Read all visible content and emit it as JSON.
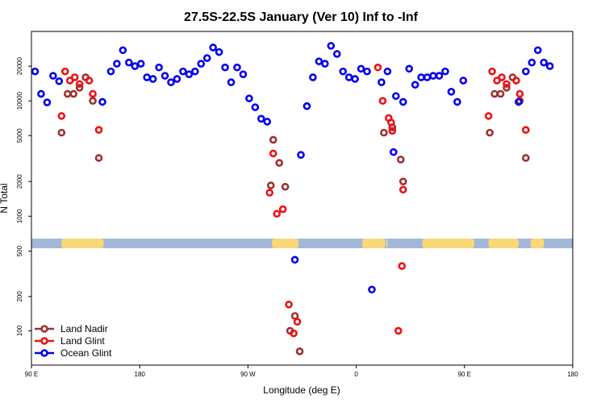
{
  "chart_data": {
    "type": "scatter",
    "title": "27.5S-22.5S January (Ver 10)   Inf to -Inf",
    "xlabel": "Longitude (deg E)",
    "ylabel": "N Total",
    "y_scale": "log",
    "xlim": [
      90,
      540
    ],
    "ylim": [
      50,
      40000
    ],
    "x_ticks": [
      {
        "value": 90,
        "label": "90 E"
      },
      {
        "value": 180,
        "label": "180"
      },
      {
        "value": 270,
        "label": "90 W"
      },
      {
        "value": 360,
        "label": "0"
      },
      {
        "value": 450,
        "label": "90 E"
      },
      {
        "value": 540,
        "label": "180"
      }
    ],
    "y_ticks": [
      {
        "value": 100,
        "label": "100"
      },
      {
        "value": 200,
        "label": "200"
      },
      {
        "value": 500,
        "label": "500"
      },
      {
        "value": 1000,
        "label": "1000"
      },
      {
        "value": 2000,
        "label": "2000"
      },
      {
        "value": 5000,
        "label": "5000"
      },
      {
        "value": 10000,
        "label": "10000"
      },
      {
        "value": 20000,
        "label": "20000"
      }
    ],
    "land_ocean_strip": {
      "y_range": [
        530,
        640
      ],
      "ocean_color": "#a3b8d8",
      "land_color": "#fad877",
      "land_segments": [
        [
          115,
          150
        ],
        [
          290,
          312
        ],
        [
          365,
          384
        ],
        [
          385,
          386
        ],
        [
          415,
          458
        ],
        [
          470,
          495
        ],
        [
          505,
          516
        ]
      ]
    },
    "legend": {
      "placement": "bottom-left"
    },
    "series": [
      {
        "name": "Land Nadir",
        "color": "#a03030",
        "points": [
          [
            115,
            5300
          ],
          [
            120,
            11500
          ],
          [
            125,
            11500
          ],
          [
            130,
            13000
          ],
          [
            135,
            16000
          ],
          [
            141,
            10000
          ],
          [
            146,
            3200
          ],
          [
            289,
            1850
          ],
          [
            291,
            4600
          ],
          [
            296,
            2900
          ],
          [
            301,
            1800
          ],
          [
            305,
            100
          ],
          [
            309,
            135
          ],
          [
            313,
            66
          ],
          [
            383,
            5300
          ],
          [
            390,
            5900
          ],
          [
            397,
            3100
          ],
          [
            399,
            2000
          ],
          [
            471,
            5300
          ],
          [
            475,
            11500
          ],
          [
            480,
            11500
          ],
          [
            485,
            13000
          ],
          [
            490,
            16000
          ],
          [
            496,
            10000
          ],
          [
            501,
            3200
          ]
        ]
      },
      {
        "name": "Land Glint",
        "color": "#ee1111",
        "points": [
          [
            115,
            7400
          ],
          [
            118,
            18000
          ],
          [
            122,
            15000
          ],
          [
            126,
            16000
          ],
          [
            130,
            14000
          ],
          [
            138,
            15000
          ],
          [
            141,
            11500
          ],
          [
            146,
            5600
          ],
          [
            288,
            1600
          ],
          [
            291,
            3500
          ],
          [
            294,
            1050
          ],
          [
            299,
            1150
          ],
          [
            304,
            170
          ],
          [
            308,
            95
          ],
          [
            311,
            120
          ],
          [
            378,
            19500
          ],
          [
            382,
            10000
          ],
          [
            387,
            7100
          ],
          [
            389,
            6500
          ],
          [
            390,
            5500
          ],
          [
            395,
            100
          ],
          [
            398,
            370
          ],
          [
            399,
            1700
          ],
          [
            470,
            7400
          ],
          [
            473,
            18000
          ],
          [
            477,
            15000
          ],
          [
            481,
            16000
          ],
          [
            485,
            14000
          ],
          [
            493,
            15000
          ],
          [
            496,
            11500
          ],
          [
            501,
            5600
          ]
        ]
      },
      {
        "name": "Ocean Glint",
        "color": "#0000ee",
        "points": [
          [
            93,
            18000
          ],
          [
            98,
            11500
          ],
          [
            103,
            9700
          ],
          [
            108,
            16500
          ],
          [
            113,
            14800
          ],
          [
            149,
            9800
          ],
          [
            156,
            18000
          ],
          [
            161,
            21000
          ],
          [
            166,
            27500
          ],
          [
            171,
            21500
          ],
          [
            176,
            20000
          ],
          [
            181,
            21000
          ],
          [
            186,
            16000
          ],
          [
            191,
            15500
          ],
          [
            196,
            19500
          ],
          [
            201,
            16500
          ],
          [
            206,
            14500
          ],
          [
            211,
            15500
          ],
          [
            216,
            18000
          ],
          [
            221,
            17000
          ],
          [
            226,
            18000
          ],
          [
            231,
            21000
          ],
          [
            236,
            23500
          ],
          [
            241,
            29000
          ],
          [
            246,
            26500
          ],
          [
            251,
            19500
          ],
          [
            256,
            14500
          ],
          [
            261,
            19500
          ],
          [
            266,
            17000
          ],
          [
            271,
            10500
          ],
          [
            276,
            8800
          ],
          [
            281,
            7000
          ],
          [
            286,
            6600
          ],
          [
            309,
            420
          ],
          [
            314,
            3400
          ],
          [
            319,
            9000
          ],
          [
            324,
            16000
          ],
          [
            329,
            22000
          ],
          [
            334,
            21000
          ],
          [
            339,
            30000
          ],
          [
            344,
            25500
          ],
          [
            349,
            18000
          ],
          [
            354,
            16000
          ],
          [
            359,
            15500
          ],
          [
            364,
            19000
          ],
          [
            369,
            18000
          ],
          [
            373,
            230
          ],
          [
            381,
            14500
          ],
          [
            386,
            18000
          ],
          [
            391,
            3600
          ],
          [
            393,
            11000
          ],
          [
            399,
            9800
          ],
          [
            404,
            19000
          ],
          [
            409,
            13800
          ],
          [
            414,
            16000
          ],
          [
            419,
            16000
          ],
          [
            424,
            16500
          ],
          [
            429,
            16500
          ],
          [
            434,
            18000
          ],
          [
            439,
            12000
          ],
          [
            444,
            9800
          ],
          [
            449,
            15000
          ],
          [
            495,
            9800
          ],
          [
            501,
            18000
          ],
          [
            506,
            21500
          ],
          [
            511,
            27500
          ],
          [
            516,
            21500
          ],
          [
            521,
            20000
          ]
        ]
      }
    ]
  }
}
